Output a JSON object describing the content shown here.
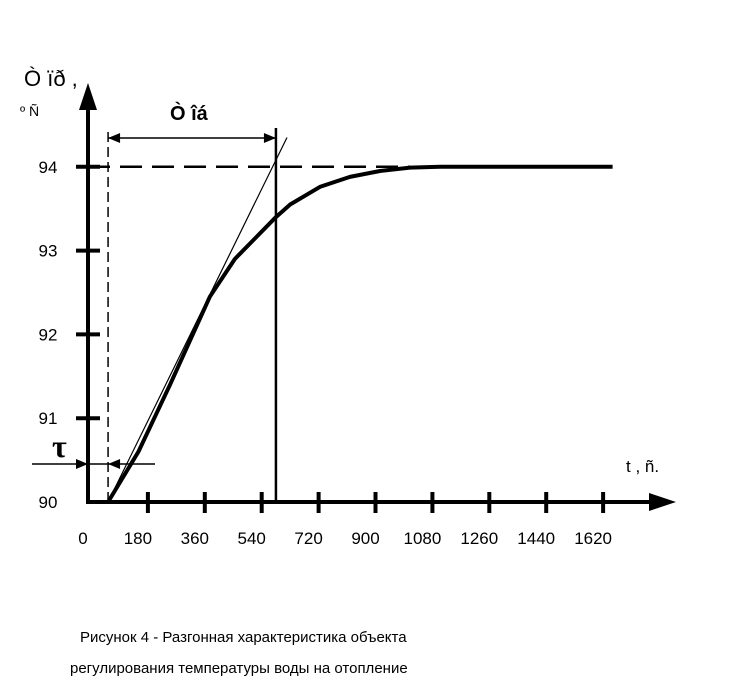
{
  "chart_data": {
    "type": "line",
    "y_label": "Ò ïð ,",
    "y_label_unit": "º Ñ",
    "x_label": "t , ñ.",
    "t_ob_label": "Ò îá",
    "tau_label": "τ",
    "caption": [
      "Рисунок 4 -  Разгонная характеристика  объекта",
      "регулирования   температуры воды на отопление"
    ],
    "x": [
      54,
      150,
      250,
      376,
      455,
      585,
      630,
      724,
      819,
      914,
      1009,
      1104,
      1650
    ],
    "series": [
      {
        "color": "#000000",
        "values": [
          90,
          90.6,
          91.4,
          92.45,
          92.9,
          93.4,
          93.55,
          93.76,
          93.88,
          93.95,
          93.99,
          94,
          94
        ]
      }
    ],
    "tangent": {
      "x": [
        54,
        620
      ],
      "values": [
        90,
        94.35
      ]
    },
    "annotations": {
      "tau": 54,
      "t_ob": 585,
      "steady": 94
    },
    "xlim": [
      0,
      1830
    ],
    "ylim": [
      90,
      95
    ],
    "xticks": [
      0,
      180,
      360,
      540,
      720,
      900,
      1080,
      1260,
      1440,
      1620
    ],
    "yticks": [
      90,
      91,
      92,
      93,
      94
    ]
  }
}
